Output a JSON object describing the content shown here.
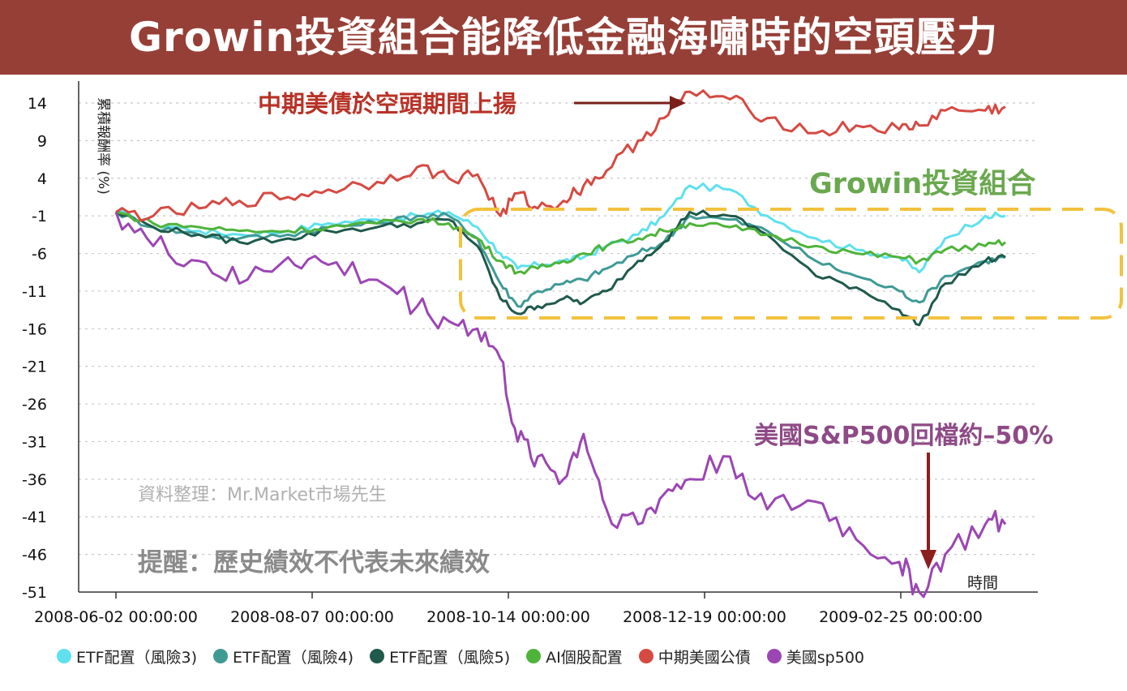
{
  "banner": {
    "title": "Growin投資組合能降低金融海嘯時的空頭壓力"
  },
  "colors": {
    "banner": "#963f37",
    "etf3": "#5fe0ee",
    "etf4": "#3f9a94",
    "etf5": "#1f5a4c",
    "ai": "#4fb33a",
    "bond": "#d54a43",
    "sp500": "#9b46b3",
    "highlight": "#f2c23e",
    "bond_annotation": "#b83227",
    "growin_annotation": "#6aa84f",
    "sp_annotation": "#8e4a86",
    "arrow_down": "#8b1e1e"
  },
  "annotations": {
    "bond": "中期美債於空頭期間上揚",
    "growin": "Growin投資組合",
    "sp500": "美國S&P500回檔約–50%",
    "source": "資料整理：Mr.Market市場先生",
    "warning": "提醒：歷史績效不代表未來績效"
  },
  "chart_data": {
    "type": "line",
    "ylabel": "累積報酬率 (%)",
    "xlabel": "時間",
    "ylim": [
      -51,
      16
    ],
    "yticks": [
      14,
      9,
      4,
      -1,
      -6,
      -11,
      -16,
      -21,
      -26,
      -31,
      -36,
      -41,
      -46,
      -51
    ],
    "xticks": [
      "2008-06-02 00:00:00",
      "2008-08-07 00:00:00",
      "2008-10-14 00:00:00",
      "2008-12-19 00:00:00",
      "2009-02-25 00:00:00"
    ],
    "x_dates": [
      "2008-06-02",
      "2008-06-15",
      "2008-07-01",
      "2008-07-15",
      "2008-08-01",
      "2008-08-15",
      "2008-09-01",
      "2008-09-15",
      "2008-09-26",
      "2008-10-06",
      "2008-10-14",
      "2008-10-20",
      "2008-10-27",
      "2008-11-05",
      "2008-11-12",
      "2008-11-20",
      "2008-12-01",
      "2008-12-10",
      "2008-12-19",
      "2009-01-02",
      "2009-01-15",
      "2009-02-01",
      "2009-02-15",
      "2009-03-02",
      "2009-03-09",
      "2009-03-18",
      "2009-04-01",
      "2009-04-08"
    ],
    "series": [
      {
        "name": "ETF配置（風險3)",
        "color": "#5fe0ee",
        "values": [
          -0.5,
          -2,
          -3,
          -3.5,
          -3,
          -2,
          -1.5,
          -1,
          -0.5,
          -2.5,
          -6,
          -8,
          -7.5,
          -7,
          -6.5,
          -5,
          -3.5,
          -1,
          3,
          2.5,
          -1,
          -4,
          -5.5,
          -6.5,
          -8.5,
          -4,
          -1,
          -1
        ]
      },
      {
        "name": "ETF配置（風險4)",
        "color": "#3f9a94",
        "values": [
          -0.5,
          -2.5,
          -3.5,
          -4,
          -3.5,
          -2.5,
          -2,
          -1,
          -1,
          -4,
          -10,
          -13,
          -11,
          -10,
          -9.5,
          -8,
          -6,
          -4.5,
          -1,
          -1.5,
          -3,
          -7,
          -9,
          -11,
          -12.5,
          -9,
          -7,
          -6.5
        ]
      },
      {
        "name": "ETF配置（風險5)",
        "color": "#1f5a4c",
        "values": [
          -0.5,
          -2.5,
          -3.5,
          -4.5,
          -4,
          -3,
          -2.5,
          -2,
          -1.5,
          -5,
          -12,
          -14,
          -13,
          -12,
          -12.5,
          -11,
          -7,
          -4.5,
          -0.5,
          -1,
          -3.5,
          -9,
          -10.5,
          -13.5,
          -15.5,
          -10,
          -7,
          -6.5
        ]
      },
      {
        "name": "AI個股配置",
        "color": "#4fb33a",
        "values": [
          -0.5,
          -2,
          -2.5,
          -3,
          -3,
          -2.5,
          -2,
          -1.5,
          -2,
          -4,
          -7,
          -8.5,
          -8,
          -7,
          -6,
          -5,
          -4,
          -3,
          -2,
          -2.5,
          -3.5,
          -5,
          -6,
          -6.5,
          -7,
          -5.5,
          -5,
          -4.5
        ]
      },
      {
        "name": "中期美國公債",
        "color": "#d54a43",
        "values": [
          -0.5,
          -1,
          0,
          1,
          1.5,
          2.5,
          3.5,
          5.5,
          4,
          4.5,
          -1,
          2,
          0,
          1,
          3,
          5,
          9,
          12,
          15.5,
          14.5,
          12,
          10,
          11,
          10.5,
          11,
          13,
          13,
          13.5
        ]
      },
      {
        "name": "美國sp500",
        "color": "#9b46b3",
        "values": [
          -0.5,
          -5,
          -7,
          -10,
          -6.5,
          -7.5,
          -9.5,
          -13,
          -15,
          -16,
          -20,
          -31,
          -33,
          -36,
          -30,
          -40,
          -42,
          -38,
          -36,
          -33,
          -40,
          -39,
          -44,
          -47,
          -51,
          -46,
          -42,
          -42
        ]
      }
    ]
  },
  "legend": [
    {
      "label": "ETF配置（風險3)",
      "color": "#5fe0ee"
    },
    {
      "label": "ETF配置（風險4)",
      "color": "#3f9a94"
    },
    {
      "label": "ETF配置（風險5)",
      "color": "#1f5a4c"
    },
    {
      "label": "AI個股配置",
      "color": "#4fb33a"
    },
    {
      "label": "中期美國公債",
      "color": "#d54a43"
    },
    {
      "label": "美國sp500",
      "color": "#9b46b3"
    }
  ]
}
